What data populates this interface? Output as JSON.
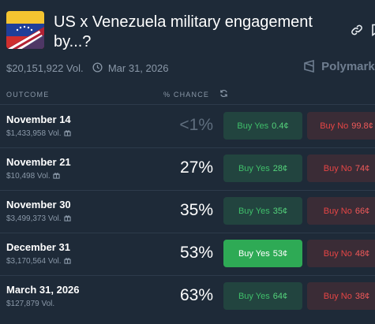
{
  "market": {
    "title": "US x Venezuela military engagement by...?",
    "volume": "$20,151,922 Vol.",
    "end_date": "Mar 31, 2026",
    "brand": "Polymarket"
  },
  "table": {
    "col_outcome": "OUTCOME",
    "col_chance": "% CHANCE",
    "rows": [
      {
        "name": "November 14",
        "volume": "$1,433,958 Vol.",
        "chance": "<1%",
        "yes_label": "Buy Yes",
        "yes_price": "0.4¢",
        "no_label": "Buy No",
        "no_price": "99.8¢"
      },
      {
        "name": "November 21",
        "volume": "$10,498 Vol.",
        "chance": "27%",
        "yes_label": "Buy Yes",
        "yes_price": "28¢",
        "no_label": "Buy No",
        "no_price": "74¢"
      },
      {
        "name": "November 30",
        "volume": "$3,499,373 Vol.",
        "chance": "35%",
        "yes_label": "Buy Yes",
        "yes_price": "35¢",
        "no_label": "Buy No",
        "no_price": "66¢"
      },
      {
        "name": "December 31",
        "volume": "$3,170,564 Vol.",
        "chance": "53%",
        "yes_label": "Buy Yes",
        "yes_price": "53¢",
        "no_label": "Buy No",
        "no_price": "48¢"
      },
      {
        "name": "March 31, 2026",
        "volume": "$127,879 Vol.",
        "chance": "63%",
        "yes_label": "Buy Yes",
        "yes_price": "64¢",
        "no_label": "Buy No",
        "no_price": "38¢"
      }
    ]
  },
  "colors": {
    "background": "#1e2a38",
    "yes": "#3fbf6a",
    "yes_active_bg": "#2eaa55",
    "no": "#e64545"
  },
  "icons": [
    "link-icon",
    "bookmark-icon",
    "clock-icon",
    "polymarket-logo-icon",
    "refresh-icon",
    "gift-icon"
  ]
}
